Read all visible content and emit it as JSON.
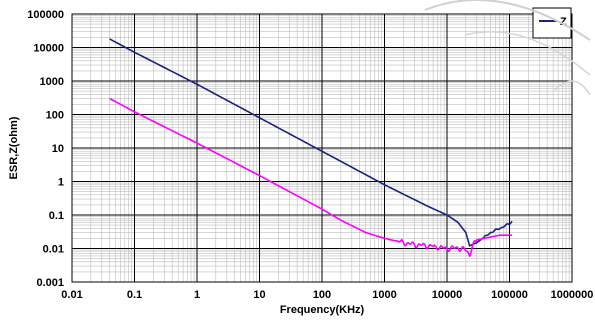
{
  "chart_data": {
    "type": "line",
    "xscale": "log",
    "yscale": "log",
    "xlabel": "Frequency(KHz)",
    "ylabel": "ESR,Z(ohm)",
    "xlim": [
      0.01,
      1000000
    ],
    "ylim": [
      0.001,
      100000
    ],
    "x_ticks": [
      "0.01",
      "0.1",
      "1",
      "10",
      "100",
      "1000",
      "10000",
      "100000",
      "1000000"
    ],
    "y_ticks": [
      "0.001",
      "0.01",
      "0.1",
      "1",
      "10",
      "100",
      "1000",
      "10000",
      "100000"
    ],
    "grid": true,
    "legend": {
      "placement": "top-right",
      "entries": [
        "Z"
      ]
    },
    "series": [
      {
        "name": "Z",
        "color": "#1a237e",
        "points": [
          [
            0.04,
            18000
          ],
          [
            0.1,
            7200
          ],
          [
            1,
            800
          ],
          [
            10,
            80
          ],
          [
            100,
            8
          ],
          [
            1000,
            0.8
          ],
          [
            5000,
            0.18
          ],
          [
            10000,
            0.1
          ],
          [
            15000,
            0.06
          ],
          [
            20000,
            0.03
          ],
          [
            23000,
            0.012
          ],
          [
            30000,
            0.015
          ],
          [
            40000,
            0.022
          ],
          [
            50000,
            0.03
          ],
          [
            70000,
            0.04
          ],
          [
            100000,
            0.055
          ],
          [
            110000,
            0.065
          ]
        ]
      },
      {
        "color": "#ff00ff",
        "points": [
          [
            0.04,
            300
          ],
          [
            0.1,
            120
          ],
          [
            1,
            14
          ],
          [
            10,
            1.5
          ],
          [
            30,
            0.5
          ],
          [
            100,
            0.15
          ],
          [
            200,
            0.07
          ],
          [
            500,
            0.03
          ],
          [
            1000,
            0.02
          ],
          [
            2000,
            0.015
          ],
          [
            3000,
            0.013
          ],
          [
            5000,
            0.012
          ],
          [
            10000,
            0.01
          ],
          [
            15000,
            0.0105
          ],
          [
            20000,
            0.009
          ],
          [
            23000,
            0.0065
          ],
          [
            25000,
            0.011
          ],
          [
            30000,
            0.018
          ],
          [
            50000,
            0.022
          ],
          [
            70000,
            0.025
          ],
          [
            110000,
            0.025
          ]
        ]
      }
    ]
  },
  "watermark": {
    "color": "#cfcfcf"
  }
}
